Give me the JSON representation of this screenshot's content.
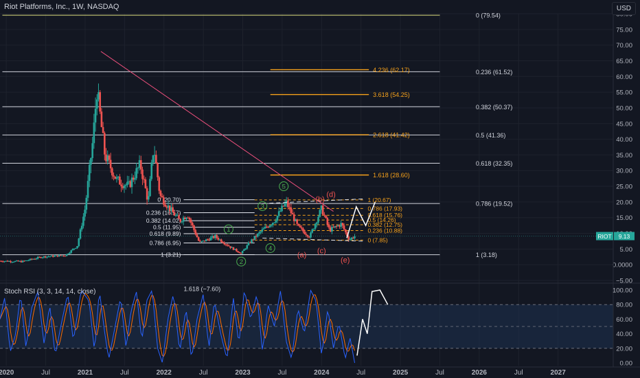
{
  "header": {
    "title": "Riot Platforms, Inc., 1W, NASDAQ",
    "currency": "USD"
  },
  "colors": {
    "background": "#131722",
    "grid": "#1e222d",
    "candle_up": "#26a69a",
    "candle_down": "#ef5350",
    "fib_white": "#d1d4dc",
    "fib_orange": "#f7a21b",
    "fib_yellow": "#dede80",
    "trendline": "#e84e7a",
    "rsi_k": "#2962ff",
    "rsi_d": "#ff6d00",
    "rsi_band": "#1e3250",
    "wave_green": "#4caf50",
    "wave_red": "#ef5350",
    "projection": "#ffffff",
    "price_label": "#26a69a"
  },
  "chart_data": {
    "type": "candlestick",
    "price_axis": {
      "min": -5,
      "max": 80,
      "ticks": [
        80,
        75,
        70,
        65,
        60,
        55,
        50,
        45,
        40,
        35,
        30,
        25,
        20,
        15,
        10,
        5,
        0,
        -5
      ],
      "tick_labels": [
        "80.00",
        "75.00",
        "70.00",
        "65.00",
        "60.00",
        "55.00",
        "50.00",
        "45.00",
        "40.00",
        "35.00",
        "30.00",
        "25.00",
        "20.00",
        "15.00",
        "10.00",
        "5.00",
        "0.0000",
        "−5.00"
      ]
    },
    "time_axis": {
      "start": 2019.92,
      "end": 2027.7,
      "ticks": [
        2020,
        2020.5,
        2021,
        2021.5,
        2022,
        2022.5,
        2023,
        2023.5,
        2024,
        2024.5,
        2025,
        2025.5,
        2026,
        2026.5,
        2027
      ],
      "tick_labels": [
        "2020",
        "Jul",
        "2021",
        "Jul",
        "2022",
        "Jul",
        "2023",
        "Jul",
        "2024",
        "Jul",
        "2025",
        "Jul",
        "2026",
        "Jul",
        "2027"
      ]
    },
    "last_price": {
      "symbol": "RIOT",
      "value": "9.13",
      "y": 9.13
    },
    "price_anchors": [
      [
        2019.92,
        1.2
      ],
      [
        2020.2,
        1.0
      ],
      [
        2020.45,
        2.5
      ],
      [
        2020.75,
        3.0
      ],
      [
        2020.9,
        6.0
      ],
      [
        2021.0,
        18.0
      ],
      [
        2021.1,
        40.0
      ],
      [
        2021.15,
        56.0
      ],
      [
        2021.25,
        35.0
      ],
      [
        2021.4,
        27.0
      ],
      [
        2021.55,
        25.0
      ],
      [
        2021.7,
        32.0
      ],
      [
        2021.8,
        20.0
      ],
      [
        2021.87,
        38.0
      ],
      [
        2021.95,
        22.0
      ],
      [
        2022.1,
        17.0
      ],
      [
        2022.2,
        14.0
      ],
      [
        2022.3,
        16.0
      ],
      [
        2022.45,
        7.0
      ],
      [
        2022.55,
        8.0
      ],
      [
        2022.65,
        9.0
      ],
      [
        2022.85,
        5.5
      ],
      [
        2022.98,
        3.6
      ],
      [
        2023.1,
        7.5
      ],
      [
        2023.25,
        11.0
      ],
      [
        2023.4,
        14.0
      ],
      [
        2023.55,
        20.0
      ],
      [
        2023.7,
        12.0
      ],
      [
        2023.85,
        9.0
      ],
      [
        2024.0,
        18.0
      ],
      [
        2024.1,
        11.0
      ],
      [
        2024.25,
        13.0
      ],
      [
        2024.35,
        8.0
      ],
      [
        2024.42,
        9.13
      ]
    ],
    "fib_retracement_main": {
      "x_start": 2019.95,
      "x_end": 2025.5,
      "label_x": 2026.0,
      "levels": [
        {
          "label": "0 (79.54)",
          "y": 79.54,
          "color_key": "fib_yellow"
        },
        {
          "label": "0.236 (61.52)",
          "y": 61.52,
          "color_key": "fib_white"
        },
        {
          "label": "0.382 (50.37)",
          "y": 50.37,
          "color_key": "fib_white"
        },
        {
          "label": "0.5 (41.36)",
          "y": 41.36,
          "color_key": "fib_white"
        },
        {
          "label": "0.618 (32.35)",
          "y": 32.35,
          "color_key": "fib_white"
        },
        {
          "label": "0.786 (19.52)",
          "y": 19.52,
          "color_key": "fib_white"
        },
        {
          "label": "1 (3.18)",
          "y": 3.18,
          "color_key": "fib_white"
        }
      ],
      "extra_label": {
        "label": "1.618 (−7.60)",
        "x": 2022.25,
        "y": -7.6
      }
    },
    "fib_extension": {
      "x_start": 2023.35,
      "x_end": 2024.6,
      "levels": [
        {
          "label": "4.236 (62.17)",
          "y": 62.17
        },
        {
          "label": "3.618 (54.25)",
          "y": 54.25
        },
        {
          "label": "2.618 (41.42)",
          "y": 41.42
        },
        {
          "label": "1.618 (28.60)",
          "y": 28.6
        }
      ]
    },
    "fib_small_left": {
      "x_start": 2022.25,
      "x_end": 2023.15,
      "levels": [
        {
          "label": "0 (20.70)",
          "y": 20.7
        },
        {
          "label": "0.236 (16.57)",
          "y": 16.57
        },
        {
          "label": "0.382 (14.02)",
          "y": 14.02
        },
        {
          "label": "0.5 (11.95)",
          "y": 11.95
        },
        {
          "label": "0.618 (9.89)",
          "y": 9.89
        },
        {
          "label": "0.786 (6.95)",
          "y": 6.95
        },
        {
          "label": "1 (3.21)",
          "y": 3.21
        }
      ]
    },
    "fib_small_right": {
      "x_start": 2023.15,
      "x_end": 2024.55,
      "levels": [
        {
          "label": "1 (20.67)",
          "y": 20.67
        },
        {
          "label": "0.786 (17.93)",
          "y": 17.93
        },
        {
          "label": "0.618 (15.76)",
          "y": 15.76
        },
        {
          "label": "0.5 (14.26)",
          "y": 14.26
        },
        {
          "label": "0.382 (12.75)",
          "y": 12.75
        },
        {
          "label": "0.236 (10.88)",
          "y": 10.88
        },
        {
          "label": "0 (7.85)",
          "y": 7.85
        }
      ]
    },
    "trendline": {
      "from": [
        2021.2,
        68.0
      ],
      "to": [
        2024.15,
        17.0
      ]
    },
    "waves": [
      {
        "label": "1",
        "x": 2022.82,
        "y": 11.3,
        "color_key": "wave_green",
        "circled": true
      },
      {
        "label": "2",
        "x": 2022.98,
        "y": 1.0,
        "color_key": "wave_green",
        "circled": true
      },
      {
        "label": "3",
        "x": 2023.25,
        "y": 18.7,
        "color_key": "wave_green",
        "circled": true
      },
      {
        "label": "4",
        "x": 2023.35,
        "y": 5.3,
        "color_key": "wave_green",
        "circled": true
      },
      {
        "label": "5",
        "x": 2023.52,
        "y": 25.0,
        "color_key": "wave_green",
        "circled": true
      },
      {
        "label": "(a)",
        "x": 2023.75,
        "y": 3.2,
        "color_key": "wave_red",
        "circled": false
      },
      {
        "label": "(b)",
        "x": 2023.98,
        "y": 21.0,
        "color_key": "wave_red",
        "circled": false
      },
      {
        "label": "(c)",
        "x": 2024.0,
        "y": 4.5,
        "color_key": "wave_red",
        "circled": false
      },
      {
        "label": "(d)",
        "x": 2024.12,
        "y": 22.5,
        "color_key": "wave_red",
        "circled": false
      },
      {
        "label": "(e)",
        "x": 2024.3,
        "y": 1.6,
        "color_key": "wave_red",
        "circled": false
      }
    ],
    "projection_path": [
      [
        2024.32,
        8.5
      ],
      [
        2024.44,
        18.5
      ],
      [
        2024.56,
        12.5
      ],
      [
        2024.68,
        20.0
      ]
    ],
    "stoch_rsi": {
      "label": "Stoch RSI (3, 3, 14, 14, close)",
      "axis": {
        "ticks": [
          100,
          80,
          60,
          40,
          20,
          0
        ],
        "tick_labels": [
          "100.00",
          "80.00",
          "60.00",
          "40.00",
          "20.00",
          "0.00"
        ],
        "band": [
          20,
          80
        ]
      },
      "k_anchors": [
        [
          2019.92,
          60
        ],
        [
          2019.98,
          90
        ],
        [
          2020.05,
          15
        ],
        [
          2020.12,
          40
        ],
        [
          2020.18,
          95
        ],
        [
          2020.25,
          20
        ],
        [
          2020.32,
          75
        ],
        [
          2020.4,
          98
        ],
        [
          2020.48,
          25
        ],
        [
          2020.55,
          80
        ],
        [
          2020.62,
          10
        ],
        [
          2020.7,
          55
        ],
        [
          2020.78,
          95
        ],
        [
          2020.85,
          30
        ],
        [
          2020.95,
          100
        ],
        [
          2021.05,
          85
        ],
        [
          2021.12,
          15
        ],
        [
          2021.18,
          100
        ],
        [
          2021.25,
          40
        ],
        [
          2021.3,
          5
        ],
        [
          2021.38,
          50
        ],
        [
          2021.45,
          90
        ],
        [
          2021.52,
          20
        ],
        [
          2021.58,
          70
        ],
        [
          2021.65,
          98
        ],
        [
          2021.72,
          30
        ],
        [
          2021.78,
          85
        ],
        [
          2021.85,
          100
        ],
        [
          2021.92,
          20
        ],
        [
          2021.98,
          0
        ],
        [
          2022.05,
          60
        ],
        [
          2022.12,
          95
        ],
        [
          2022.2,
          15
        ],
        [
          2022.28,
          75
        ],
        [
          2022.35,
          5
        ],
        [
          2022.42,
          60
        ],
        [
          2022.5,
          95
        ],
        [
          2022.57,
          20
        ],
        [
          2022.64,
          85
        ],
        [
          2022.72,
          40
        ],
        [
          2022.8,
          5
        ],
        [
          2022.88,
          90
        ],
        [
          2022.95,
          25
        ],
        [
          2023.02,
          100
        ],
        [
          2023.1,
          60
        ],
        [
          2023.18,
          95
        ],
        [
          2023.25,
          15
        ],
        [
          2023.32,
          80
        ],
        [
          2023.4,
          50
        ],
        [
          2023.48,
          100
        ],
        [
          2023.55,
          30
        ],
        [
          2023.62,
          5
        ],
        [
          2023.7,
          75
        ],
        [
          2023.78,
          40
        ],
        [
          2023.86,
          100
        ],
        [
          2023.93,
          85
        ],
        [
          2024.0,
          10
        ],
        [
          2024.08,
          75
        ],
        [
          2024.15,
          20
        ],
        [
          2024.22,
          55
        ],
        [
          2024.3,
          5
        ],
        [
          2024.36,
          35
        ],
        [
          2024.42,
          0
        ]
      ],
      "projection_path": [
        [
          2024.45,
          10
        ],
        [
          2024.52,
          60
        ],
        [
          2024.58,
          40
        ],
        [
          2024.64,
          98
        ],
        [
          2024.74,
          100
        ],
        [
          2024.84,
          80
        ]
      ]
    }
  }
}
